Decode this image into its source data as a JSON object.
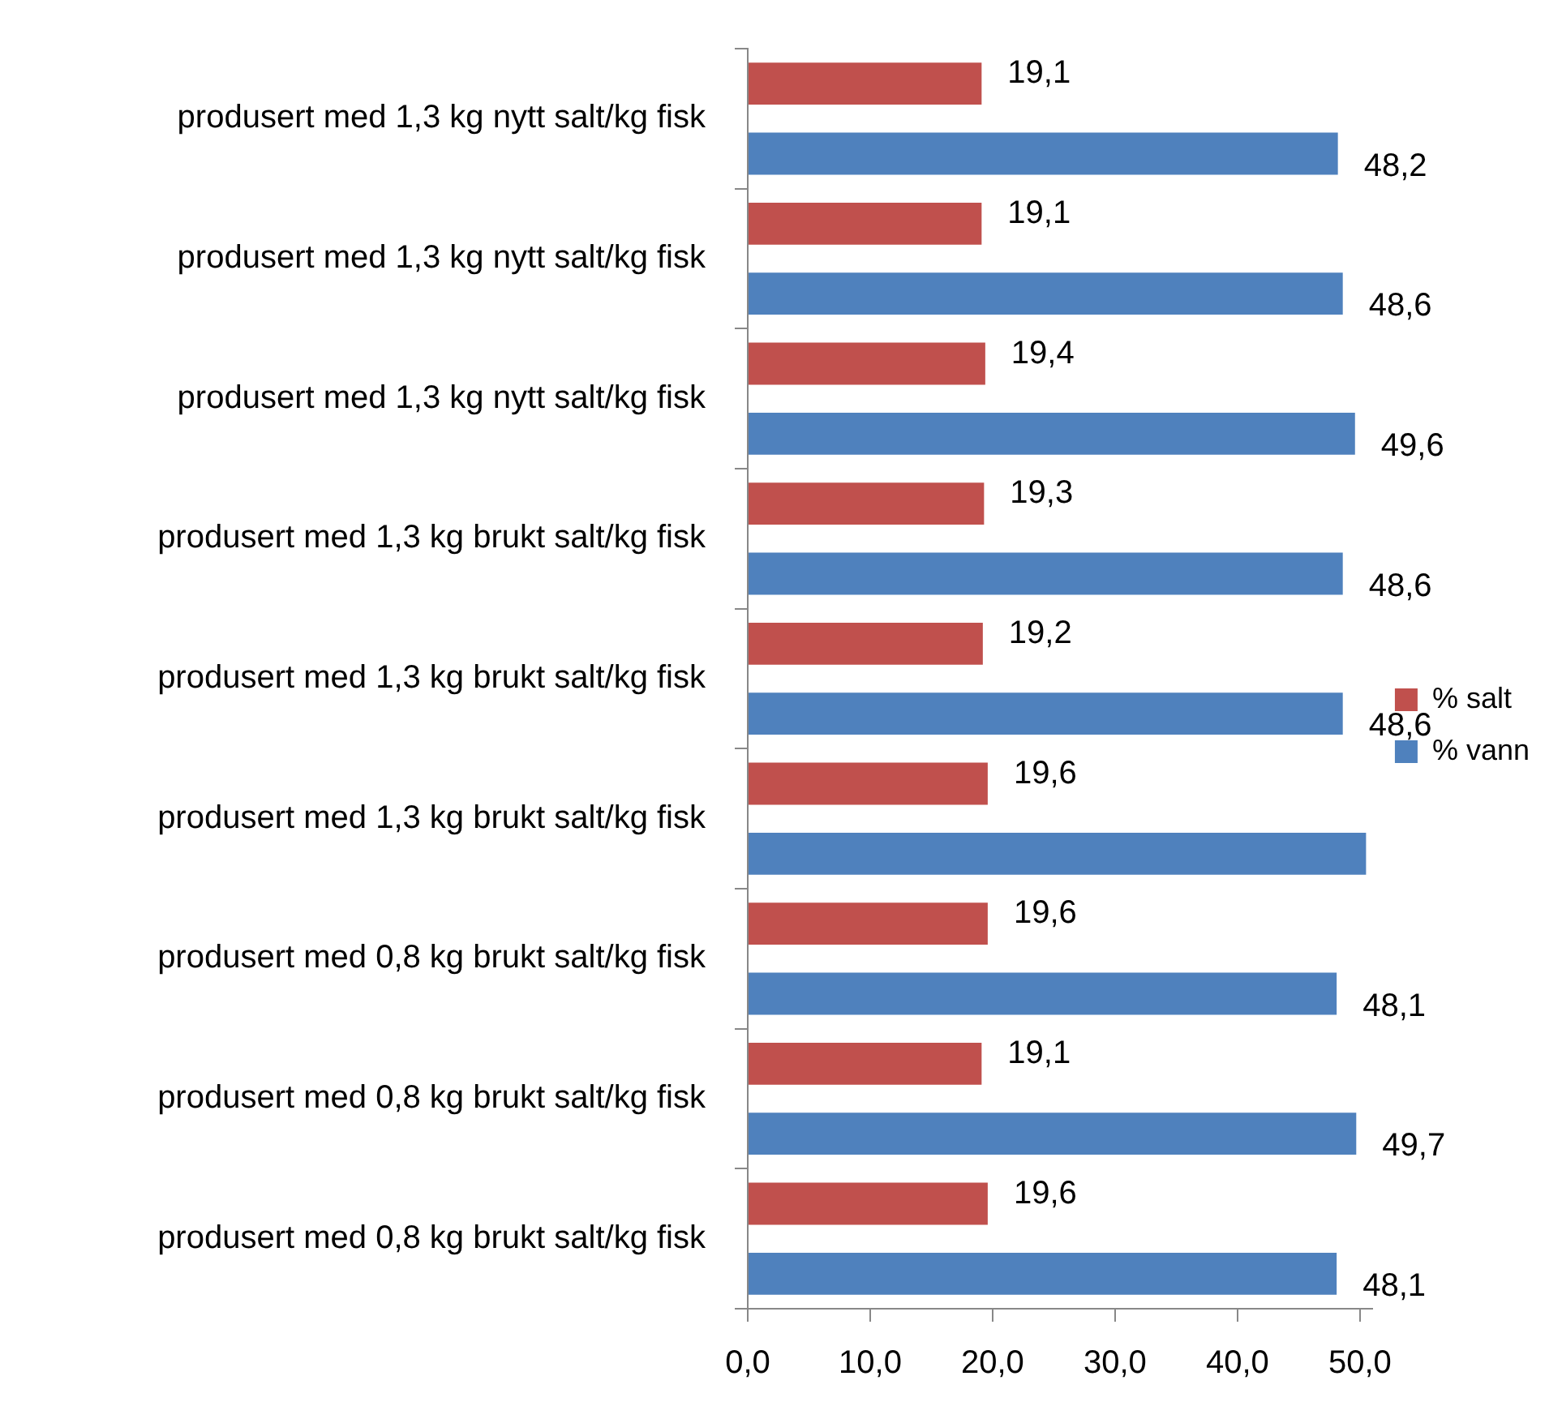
{
  "chart_data": {
    "type": "bar",
    "orientation": "horizontal",
    "categories": [
      "produsert med 1,3 kg nytt salt/kg fisk",
      "produsert med 1,3 kg nytt salt/kg fisk",
      "produsert med 1,3 kg nytt salt/kg fisk",
      "produsert med 1,3 kg brukt salt/kg fisk",
      "produsert med 1,3 kg brukt salt/kg fisk",
      "produsert med 1,3 kg brukt salt/kg fisk",
      "produsert med 0,8 kg brukt salt/kg fisk",
      "produsert med 0,8 kg brukt salt/kg fisk",
      "produsert med 0,8 kg brukt salt/kg fisk"
    ],
    "series": [
      {
        "name": "% salt",
        "color": "#c0504d",
        "values": [
          19.1,
          19.1,
          19.4,
          19.3,
          19.2,
          19.6,
          19.6,
          19.1,
          19.6
        ],
        "value_labels": [
          "19,1",
          "19,1",
          "19,4",
          "19,3",
          "19,2",
          "19,6",
          "19,6",
          "19,1",
          "19,6"
        ]
      },
      {
        "name": "% vann",
        "color": "#4f81bd",
        "values": [
          48.2,
          48.6,
          49.6,
          48.6,
          48.6,
          50.5,
          48.1,
          49.7,
          48.1
        ],
        "value_labels": [
          "48,2",
          "48,6",
          "49,6",
          "48,6",
          "48,6",
          null,
          "48,1",
          "49,7",
          "48,1"
        ]
      }
    ],
    "xlim": [
      0,
      51
    ],
    "xticks": [
      {
        "value": 0,
        "label": "0,0"
      },
      {
        "value": 10,
        "label": "10,0"
      },
      {
        "value": 20,
        "label": "20,0"
      },
      {
        "value": 30,
        "label": "30,0"
      },
      {
        "value": 40,
        "label": "40,0"
      },
      {
        "value": 50,
        "label": "50,0"
      }
    ],
    "grid": false,
    "legend": "right"
  }
}
